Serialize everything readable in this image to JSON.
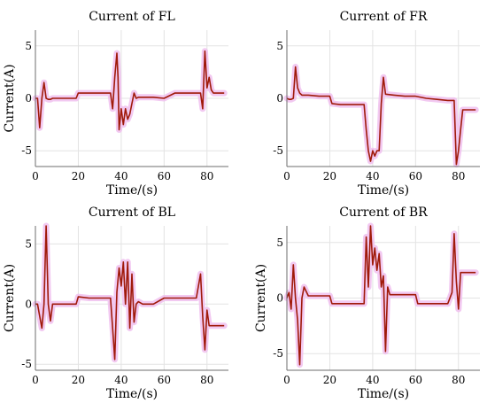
{
  "figure": {
    "background": "#ffffff",
    "grid_color": "#e3e3e3",
    "axis_color": "#6e6e6e"
  },
  "chart_data": [
    {
      "type": "line",
      "title": "Current of FL",
      "xlabel": "Time/(s)",
      "ylabel": "Current(A)",
      "xlim": [
        0,
        90
      ],
      "ylim": [
        -6.5,
        6.5
      ],
      "xticks": [
        0,
        20,
        40,
        60,
        80
      ],
      "yticks": [
        -5,
        0,
        5
      ],
      "grid": true,
      "series": [
        {
          "color": "#a01a0a",
          "band_color": "#f0c0ee",
          "x": [
            0,
            1,
            2,
            3,
            4,
            5,
            6,
            7,
            8,
            10,
            15,
            19,
            20,
            25,
            30,
            35,
            36,
            37,
            38,
            38.5,
            39,
            40,
            41,
            42,
            43,
            44,
            45,
            46,
            47,
            48,
            50,
            55,
            60,
            65,
            70,
            75,
            77,
            78,
            79,
            80,
            81,
            82,
            83,
            85,
            88
          ],
          "y": [
            0,
            0,
            -2.8,
            0,
            1.5,
            0,
            -0.1,
            -0.1,
            0,
            0,
            0,
            0,
            0.5,
            0.5,
            0.5,
            0.5,
            -1,
            2,
            4.3,
            2,
            -3,
            -1,
            -2.5,
            -1,
            -2,
            -1.5,
            -0.5,
            0.5,
            0,
            0.1,
            0.1,
            0.1,
            0,
            0.5,
            0.5,
            0.5,
            0.5,
            -1,
            4.5,
            1,
            2,
            0.8,
            0.5,
            0.5,
            0.5
          ]
        }
      ]
    },
    {
      "type": "line",
      "title": "Current of FR",
      "xlabel": "Time/(s)",
      "ylabel": "",
      "xlim": [
        0,
        90
      ],
      "ylim": [
        -6.5,
        6.5
      ],
      "xticks": [
        0,
        20,
        40,
        60,
        80
      ],
      "yticks": [
        -5,
        0,
        5
      ],
      "grid": true,
      "series": [
        {
          "color": "#a01a0a",
          "band_color": "#f0c0ee",
          "x": [
            0,
            1,
            2,
            3,
            4,
            5,
            6,
            7,
            10,
            15,
            20,
            21,
            25,
            30,
            35,
            36,
            37,
            38,
            39,
            40,
            41,
            42,
            43,
            44,
            45,
            46,
            50,
            55,
            60,
            65,
            70,
            75,
            77,
            78,
            79,
            80,
            81,
            82,
            85,
            88
          ],
          "y": [
            0,
            -0.1,
            -0.1,
            0,
            3,
            1,
            0.5,
            0.3,
            0.3,
            0.2,
            0.2,
            -0.5,
            -0.6,
            -0.6,
            -0.6,
            -0.6,
            -3,
            -5,
            -6,
            -5,
            -5.5,
            -5,
            -5,
            -0.5,
            2,
            0.4,
            0.3,
            0.2,
            0.2,
            0,
            -0.1,
            -0.2,
            -0.2,
            -0.2,
            -6.3,
            -5,
            -3,
            -1.1,
            -1.1,
            -1.1
          ]
        }
      ]
    },
    {
      "type": "line",
      "title": "Current of BL",
      "xlabel": "Time/(s)",
      "ylabel": "Current(A)",
      "xlim": [
        0,
        90
      ],
      "ylim": [
        -5.5,
        6.5
      ],
      "xticks": [
        0,
        20,
        40,
        60,
        80
      ],
      "yticks": [
        -5,
        0,
        5
      ],
      "grid": true,
      "series": [
        {
          "color": "#a01a0a",
          "band_color": "#f0c0ee",
          "x": [
            0,
            1,
            2,
            3,
            4,
            5,
            6,
            7,
            8,
            10,
            15,
            19,
            20,
            25,
            30,
            35,
            36,
            37,
            38,
            39,
            40,
            41,
            42,
            43,
            44,
            45,
            46,
            47,
            48,
            50,
            55,
            60,
            65,
            70,
            75,
            77,
            78,
            79,
            80,
            81,
            82,
            85,
            88
          ],
          "y": [
            0,
            0,
            -1,
            -2,
            0,
            6.5,
            0,
            -1.4,
            0,
            0,
            0,
            0,
            0.6,
            0.5,
            0.5,
            0.5,
            -2,
            -4.6,
            1,
            3,
            1.5,
            3.5,
            0,
            3.5,
            -2,
            2.5,
            -1.5,
            0,
            0.2,
            0,
            0,
            0.5,
            0.5,
            0.5,
            0.5,
            2.5,
            -1,
            -3.8,
            -0.5,
            -1.8,
            -1.8,
            -1.8,
            -1.8
          ]
        }
      ]
    },
    {
      "type": "line",
      "title": "Current of BR",
      "xlabel": "Time/(s)",
      "ylabel": "Current(A)",
      "xlim": [
        0,
        90
      ],
      "ylim": [
        -6.5,
        6.5
      ],
      "xticks": [
        0,
        20,
        40,
        60,
        80
      ],
      "yticks": [
        -5,
        0,
        5
      ],
      "grid": true,
      "series": [
        {
          "color": "#a01a0a",
          "band_color": "#f0c0ee",
          "x": [
            0,
            1,
            2,
            3,
            4,
            5,
            6,
            7,
            8,
            10,
            15,
            20,
            21,
            25,
            30,
            35,
            36,
            37,
            38,
            39,
            40,
            41,
            42,
            43,
            44,
            45,
            46,
            47,
            48,
            50,
            55,
            60,
            61,
            65,
            70,
            75,
            77,
            78,
            79,
            80,
            81,
            82,
            85,
            88
          ],
          "y": [
            0,
            0.5,
            -1,
            3,
            0,
            -2,
            -6,
            0,
            1,
            0.2,
            0.2,
            0.2,
            -0.5,
            -0.5,
            -0.5,
            -0.5,
            -0.5,
            5.5,
            1,
            6.5,
            3,
            4.5,
            2.5,
            4,
            1,
            2,
            -4.8,
            1,
            0.3,
            0.3,
            0.3,
            0.3,
            -0.5,
            -0.5,
            -0.5,
            -0.5,
            0.5,
            5.8,
            1.5,
            -1,
            2.3,
            2.3,
            2.3,
            2.3
          ]
        }
      ]
    }
  ]
}
